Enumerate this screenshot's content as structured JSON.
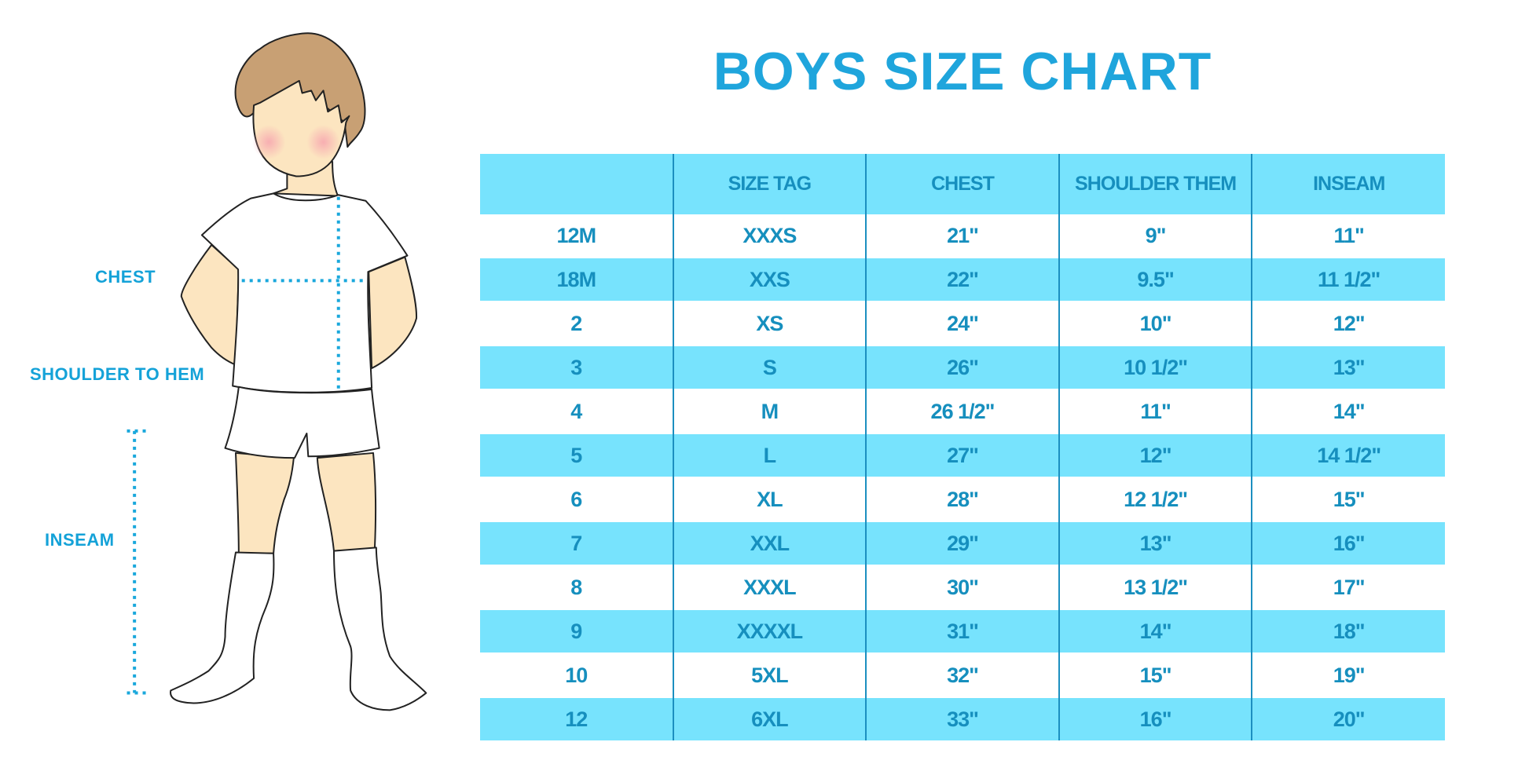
{
  "title": "BOYS SIZE CHART",
  "figure_labels": {
    "chest": "CHEST",
    "shoulder": "SHOULDER TO HEM",
    "inseam": "INSEAM"
  },
  "colors": {
    "accent": "#1fa5dc",
    "row_fill": "#77e3fd",
    "cell_text": "#168fbe",
    "hair": "#c8a074",
    "skin": "#fce5c0"
  },
  "table": {
    "headers": [
      "",
      "SIZE TAG",
      "CHEST",
      "SHOULDER THEM",
      "INSEAM"
    ],
    "rows": [
      [
        "12M",
        "XXXS",
        "21\"",
        "9\"",
        "11\""
      ],
      [
        "18M",
        "XXS",
        "22\"",
        "9.5\"",
        "11 1/2\""
      ],
      [
        "2",
        "XS",
        "24\"",
        "10\"",
        "12\""
      ],
      [
        "3",
        "S",
        "26\"",
        "10 1/2\"",
        "13\""
      ],
      [
        "4",
        "M",
        "26 1/2\"",
        "11\"",
        "14\""
      ],
      [
        "5",
        "L",
        "27\"",
        "12\"",
        "14 1/2\""
      ],
      [
        "6",
        "XL",
        "28\"",
        "12 1/2\"",
        "15\""
      ],
      [
        "7",
        "XXL",
        "29\"",
        "13\"",
        "16\""
      ],
      [
        "8",
        "XXXL",
        "30\"",
        "13 1/2\"",
        "17\""
      ],
      [
        "9",
        "XXXXL",
        "31\"",
        "14\"",
        "18\""
      ],
      [
        "10",
        "5XL",
        "32\"",
        "15\"",
        "19\""
      ],
      [
        "12",
        "6XL",
        "33\"",
        "16\"",
        "20\""
      ]
    ]
  }
}
